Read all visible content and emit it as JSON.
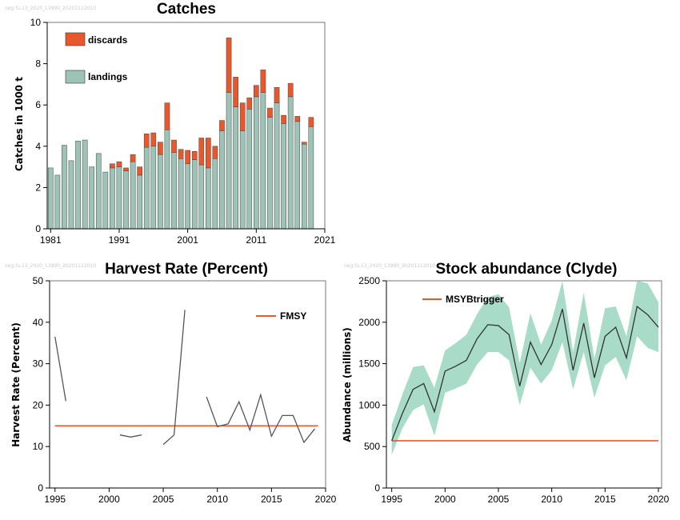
{
  "chart_data": [
    {
      "type": "bar",
      "title": "Catches",
      "watermark": "neg.fu.13_2020_13990_20201112010",
      "ylabel": "Catches in 1000 t",
      "xlabel": "",
      "stacked": true,
      "legend_position": "top-left",
      "xlim": [
        1980.5,
        2021
      ],
      "ylim": [
        0,
        10
      ],
      "x_ticks": [
        1981,
        1991,
        2001,
        2011,
        2021
      ],
      "y_ticks": [
        0,
        2,
        4,
        6,
        8,
        10
      ],
      "categories": [
        1981,
        1982,
        1983,
        1984,
        1985,
        1986,
        1987,
        1988,
        1989,
        1990,
        1991,
        1992,
        1993,
        1994,
        1995,
        1996,
        1997,
        1998,
        1999,
        2000,
        2001,
        2002,
        2003,
        2004,
        2005,
        2006,
        2007,
        2008,
        2009,
        2010,
        2011,
        2012,
        2013,
        2014,
        2015,
        2016,
        2017,
        2018,
        2019
      ],
      "series": [
        {
          "name": "landings",
          "color": "#9cc3b5",
          "values": [
            2.95,
            2.6,
            4.05,
            3.3,
            4.25,
            4.3,
            3.0,
            3.65,
            2.75,
            2.95,
            3.0,
            2.8,
            3.25,
            2.6,
            3.95,
            4.0,
            3.6,
            4.8,
            3.7,
            3.4,
            3.15,
            3.35,
            3.1,
            2.95,
            3.4,
            4.75,
            6.6,
            5.9,
            4.75,
            5.8,
            6.4,
            6.6,
            5.4,
            6.1,
            5.1,
            6.4,
            5.2,
            4.1,
            4.95
          ]
        },
        {
          "name": "discards",
          "color": "#e8582c",
          "values": [
            0,
            0,
            0,
            0,
            0,
            0,
            0,
            0,
            0,
            0.2,
            0.25,
            0.15,
            0.35,
            0.4,
            0.65,
            0.65,
            0.6,
            1.3,
            0.6,
            0.45,
            0.65,
            0.4,
            1.3,
            1.45,
            0.6,
            0.5,
            2.65,
            1.45,
            1.35,
            0.55,
            0.55,
            1.1,
            0.45,
            0.75,
            0.4,
            0.65,
            0.25,
            0.1,
            0.45
          ]
        }
      ]
    },
    {
      "type": "line",
      "title": "Harvest Rate (Percent)",
      "watermark": "neg.fu.13_2020_13990_20201112010",
      "ylabel": "Harvest Rate (Percent)",
      "xlabel": "",
      "legend_position": "top-right",
      "xlim": [
        1994.5,
        2020
      ],
      "ylim": [
        0,
        50
      ],
      "x_ticks": [
        1995,
        2000,
        2005,
        2010,
        2015,
        2020
      ],
      "y_ticks": [
        0,
        10,
        20,
        30,
        40,
        50
      ],
      "reference_line": {
        "name": "FMSY",
        "value": 15,
        "color": "#e8582c"
      },
      "segments": [
        {
          "x": [
            1995,
            1996
          ],
          "y": [
            36.5,
            21
          ]
        },
        {
          "x": [
            2001,
            2002,
            2003
          ],
          "y": [
            12.8,
            12.3,
            12.8
          ]
        },
        {
          "x": [
            2005,
            2006,
            2007
          ],
          "y": [
            10.5,
            12.8,
            43
          ]
        },
        {
          "x": [
            2009,
            2010,
            2011,
            2012,
            2013,
            2014,
            2015,
            2016,
            2017,
            2018,
            2019
          ],
          "y": [
            22,
            14.8,
            15.5,
            20.8,
            14,
            22.5,
            12.5,
            17.5,
            17.5,
            11,
            14.3
          ]
        }
      ],
      "line_color": "#555555"
    },
    {
      "type": "area",
      "title": "Stock abundance (Clyde)",
      "watermark": "neg.fu.13_2020_13990_20201112010",
      "ylabel": "Abundance (millions)",
      "xlabel": "",
      "legend_position": "top-left",
      "xlim": [
        1994.5,
        2020.3
      ],
      "ylim": [
        0,
        2500
      ],
      "x_ticks": [
        1995,
        2000,
        2005,
        2010,
        2015,
        2020
      ],
      "y_ticks": [
        0,
        500,
        1000,
        1500,
        2000,
        2500
      ],
      "reference_line": {
        "name": "MSYBtrigger",
        "value": 570,
        "color": "#e8582c"
      },
      "band_color": "#a8dcc9",
      "line_color": "#333333",
      "x": [
        1995,
        1996,
        1997,
        1998,
        1999,
        2000,
        2001,
        2002,
        2003,
        2004,
        2005,
        2006,
        2007,
        2008,
        2009,
        2010,
        2011,
        2012,
        2013,
        2014,
        2015,
        2016,
        2017,
        2018,
        2019,
        2020
      ],
      "estimate": [
        570,
        900,
        1190,
        1260,
        920,
        1410,
        1470,
        1540,
        1800,
        1970,
        1960,
        1850,
        1230,
        1760,
        1490,
        1730,
        2160,
        1420,
        1990,
        1330,
        1830,
        1940,
        1570,
        2190,
        2090,
        1940
      ],
      "lower": [
        400,
        720,
        940,
        1010,
        630,
        1150,
        1200,
        1260,
        1490,
        1640,
        1640,
        1540,
        1000,
        1450,
        1260,
        1420,
        1760,
        1190,
        1640,
        1090,
        1480,
        1580,
        1300,
        1830,
        1690,
        1640
      ],
      "upper": [
        760,
        1130,
        1460,
        1480,
        1210,
        1660,
        1750,
        1850,
        2100,
        2300,
        2340,
        2180,
        1510,
        2110,
        1730,
        2020,
        2530,
        1640,
        2360,
        1560,
        2170,
        2190,
        1830,
        2500,
        2470,
        2240
      ]
    }
  ]
}
